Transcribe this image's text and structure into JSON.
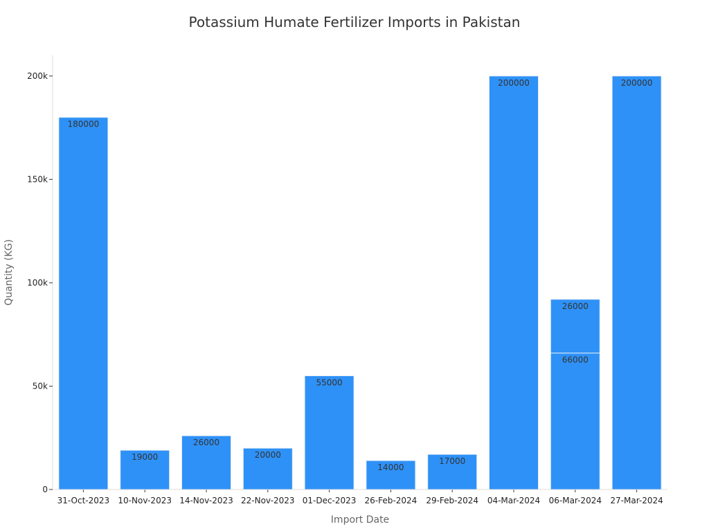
{
  "chart_data": {
    "type": "bar",
    "title": "Potassium Humate Fertilizer Imports in Pakistan",
    "xlabel": "Import Date",
    "ylabel": "Quantity (KG)",
    "ylim": [
      0,
      210000
    ],
    "yticks": [
      0,
      50000,
      100000,
      150000,
      200000
    ],
    "ytick_labels": [
      "0",
      "50k",
      "100k",
      "150k",
      "200k"
    ],
    "grid": false,
    "bar_color": "#2e91f7",
    "stacked": true,
    "categories": [
      "31-Oct-2023",
      "10-Nov-2023",
      "14-Nov-2023",
      "22-Nov-2023",
      "01-Dec-2023",
      "26-Feb-2024",
      "29-Feb-2024",
      "04-Mar-2024",
      "06-Mar-2024",
      "27-Mar-2024"
    ],
    "bars": [
      {
        "category": "31-Oct-2023",
        "segments": [
          180000
        ]
      },
      {
        "category": "10-Nov-2023",
        "segments": [
          19000
        ]
      },
      {
        "category": "14-Nov-2023",
        "segments": [
          26000
        ]
      },
      {
        "category": "22-Nov-2023",
        "segments": [
          20000
        ]
      },
      {
        "category": "01-Dec-2023",
        "segments": [
          55000
        ]
      },
      {
        "category": "26-Feb-2024",
        "segments": [
          14000
        ]
      },
      {
        "category": "29-Feb-2024",
        "segments": [
          17000
        ]
      },
      {
        "category": "04-Mar-2024",
        "segments": [
          200000
        ]
      },
      {
        "category": "06-Mar-2024",
        "segments": [
          66000,
          26000
        ]
      },
      {
        "category": "27-Mar-2024",
        "segments": [
          200000
        ]
      }
    ]
  }
}
